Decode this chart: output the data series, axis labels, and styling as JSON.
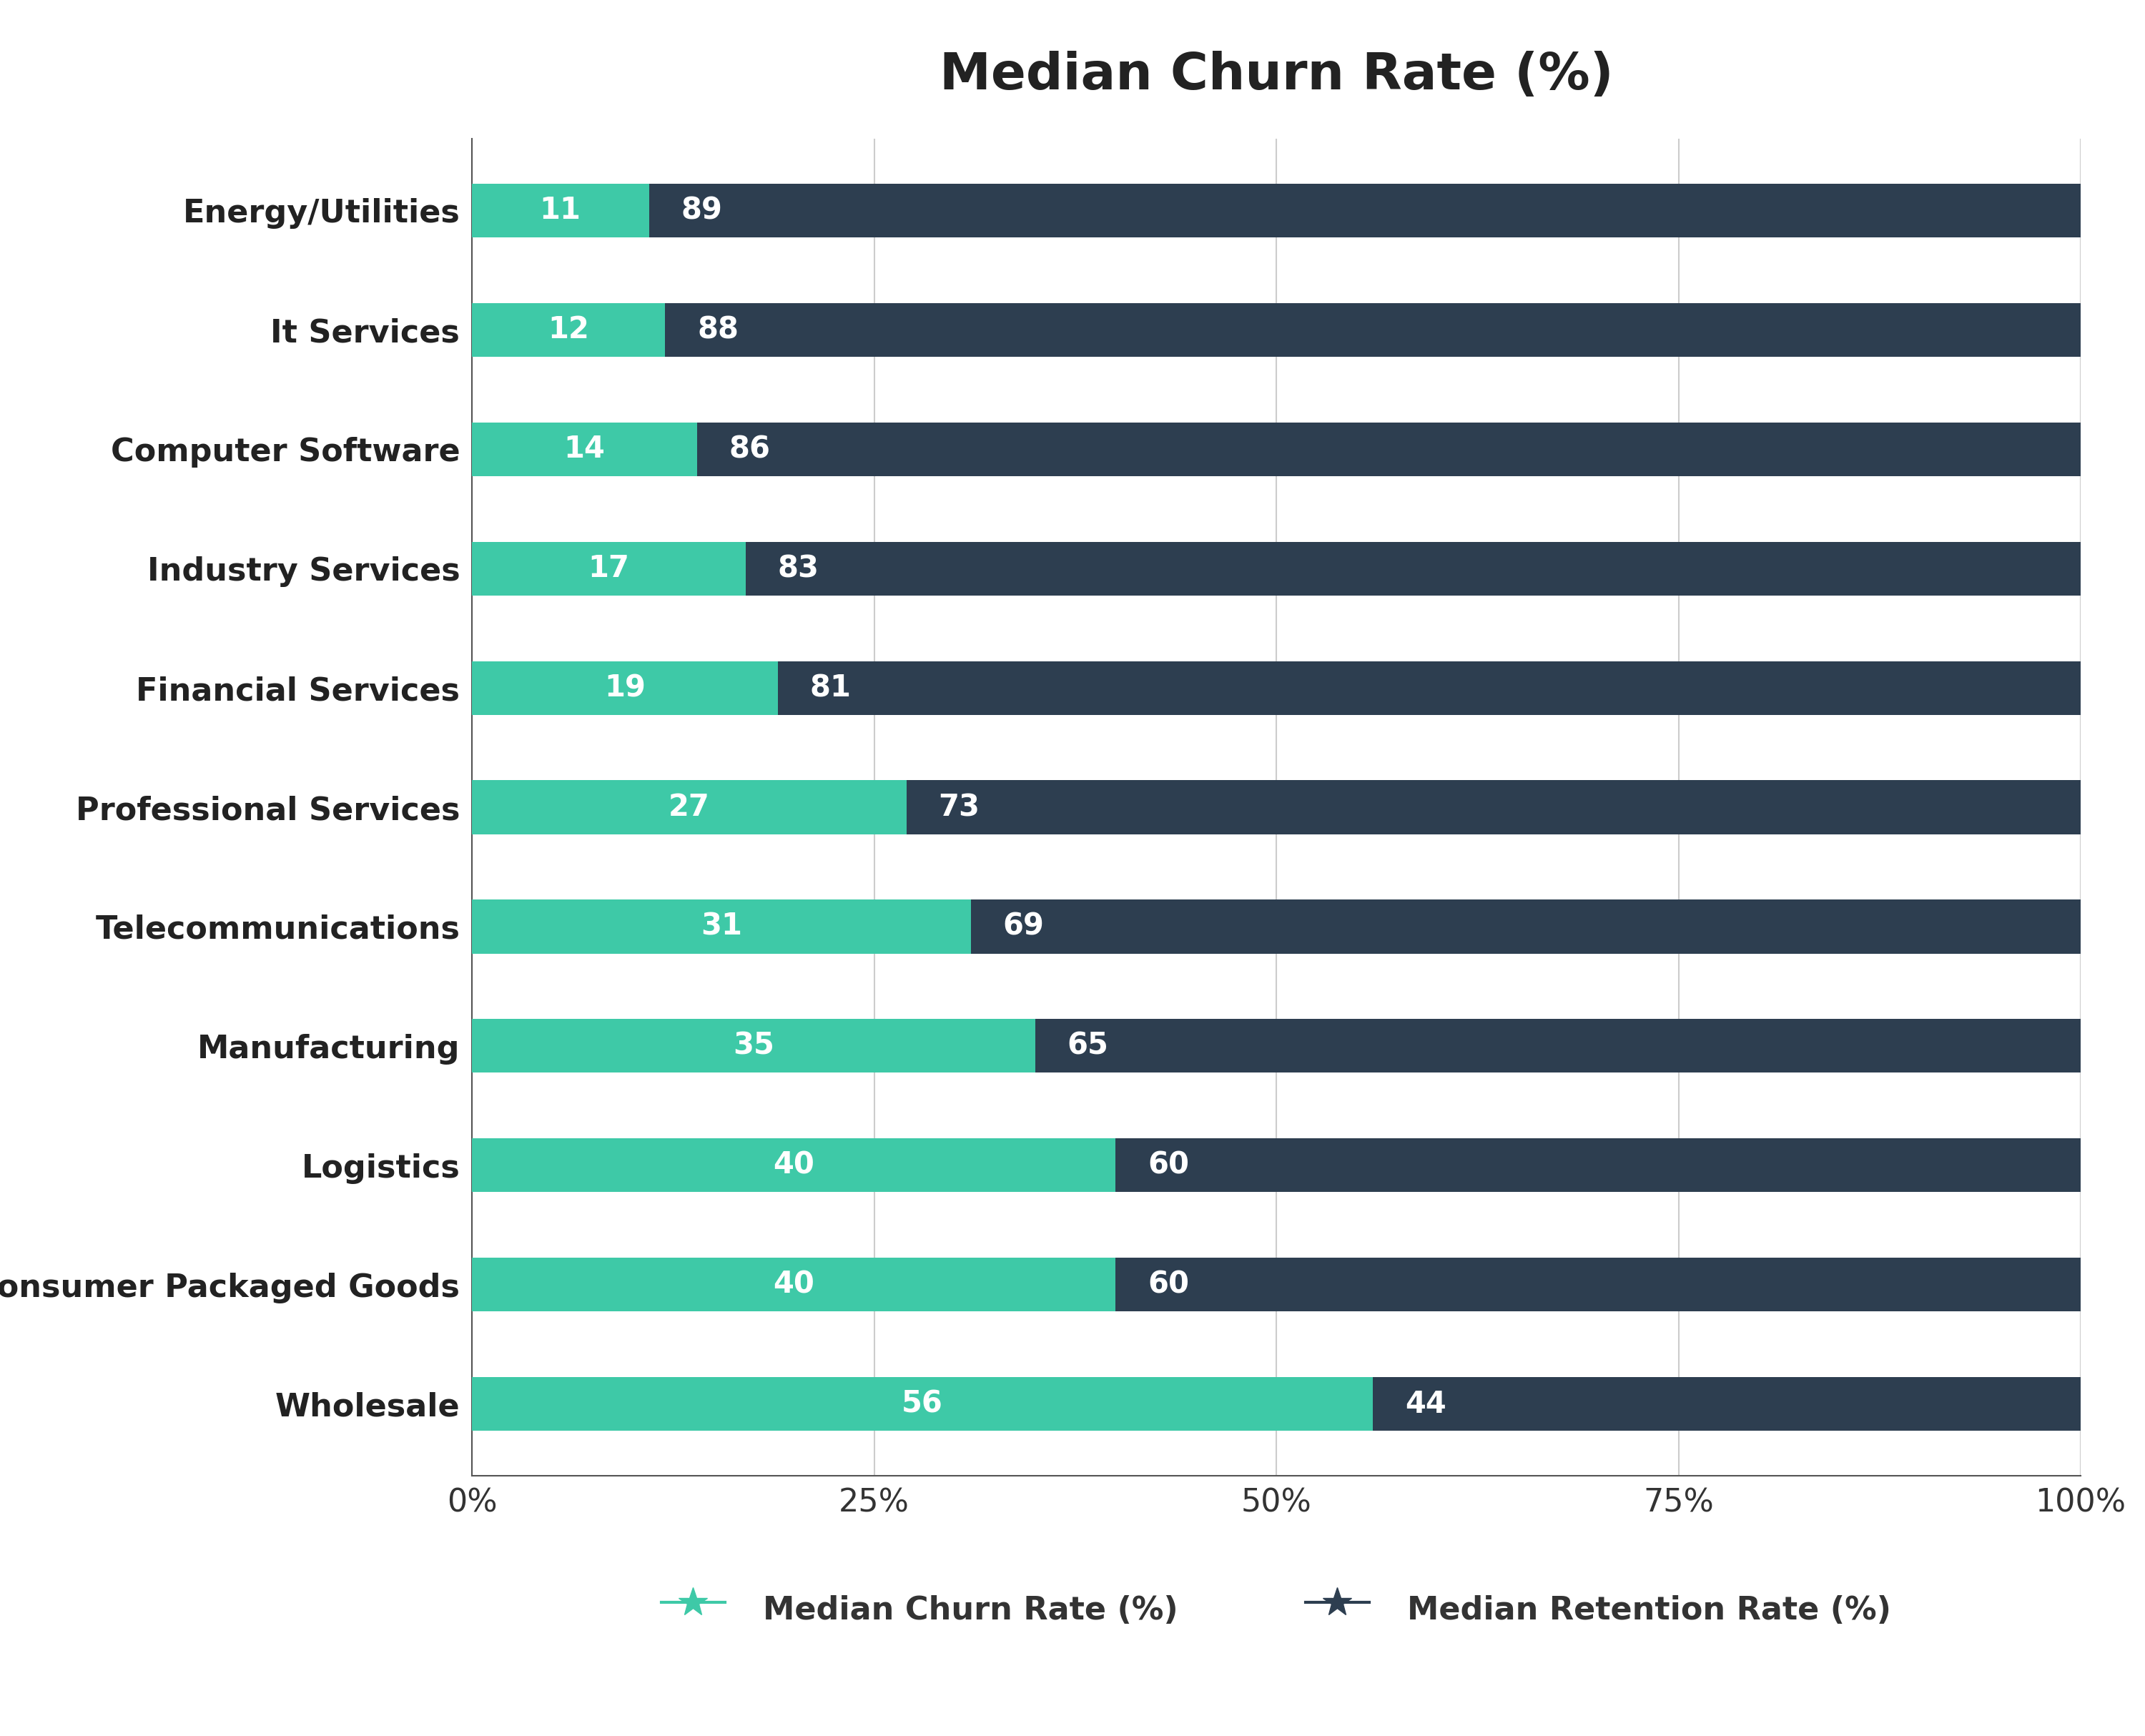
{
  "title": "Median Churn Rate (%)",
  "categories": [
    "Energy/Utilities",
    "It Services",
    "Computer Software",
    "Industry Services",
    "Financial Services",
    "Professional Services",
    "Telecommunications",
    "Manufacturing",
    "Logistics",
    "Consumer Packaged Goods",
    "Wholesale"
  ],
  "churn_values": [
    11,
    12,
    14,
    17,
    19,
    27,
    31,
    35,
    40,
    40,
    56
  ],
  "retention_values": [
    89,
    88,
    86,
    83,
    81,
    73,
    69,
    65,
    60,
    60,
    44
  ],
  "churn_color": "#3ec9a7",
  "retention_color": "#2d3e50",
  "background_color": "#ffffff",
  "bar_height": 0.45,
  "title_fontsize": 52,
  "label_fontsize": 32,
  "tick_fontsize": 32,
  "legend_fontsize": 32,
  "bar_label_fontsize": 30,
  "xlim": [
    0,
    100
  ],
  "xticks": [
    0,
    25,
    50,
    75,
    100
  ],
  "xtick_labels": [
    "0%",
    "25%",
    "50%",
    "75%",
    "100%"
  ],
  "grid_color": "#cccccc",
  "legend_churn_label": "Median Churn Rate (%)",
  "legend_retention_label": "Median Retention Rate (%)"
}
